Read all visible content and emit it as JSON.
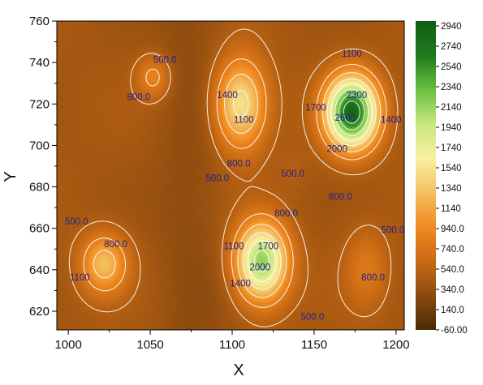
{
  "chart_data": {
    "type": "heatmap",
    "title": "",
    "xlabel": "X",
    "ylabel": "Y",
    "xlim": [
      993,
      1205
    ],
    "ylim": [
      611,
      760
    ],
    "x_ticks": [
      1000,
      1050,
      1100,
      1150,
      1200
    ],
    "y_ticks": [
      620,
      640,
      660,
      680,
      700,
      720,
      740,
      760
    ],
    "grid": false,
    "colorbar": {
      "min": -60,
      "max": 2940,
      "ticks": [
        "2940",
        "2740",
        "2540",
        "2340",
        "2140",
        "1940",
        "1740",
        "1540",
        "1340",
        "1140",
        "940.0",
        "740.0",
        "540.0",
        "340.0",
        "140.0",
        "-60.00"
      ],
      "colors": [
        "#4a2a05",
        "#8a4a0f",
        "#c96a14",
        "#f08a20",
        "#f4c060",
        "#f8f0a0",
        "#c8e880",
        "#6abf40",
        "#1f7a1f",
        "#0f5f0f"
      ]
    },
    "contour_levels": [
      500,
      800,
      1100,
      1400,
      1700,
      2000,
      2300,
      2600
    ],
    "peaks": [
      {
        "x": 1173,
        "y": 716,
        "value": 2800,
        "sx": 11,
        "sy": 12
      },
      {
        "x": 1118,
        "y": 644,
        "value": 2150,
        "sx": 11,
        "sy": 13
      },
      {
        "x": 1105,
        "y": 720,
        "value": 1550,
        "sx": 11,
        "sy": 15
      },
      {
        "x": 1022,
        "y": 643,
        "value": 1250,
        "sx": 10,
        "sy": 10
      },
      {
        "x": 1052,
        "y": 733,
        "value": 900,
        "sx": 7,
        "sy": 7
      },
      {
        "x": 1182,
        "y": 641,
        "value": 750,
        "sx": 9,
        "sy": 13
      },
      {
        "x": 1138,
        "y": 688,
        "value": 500,
        "sx": 6,
        "sy": 7
      }
    ],
    "background_level": 420,
    "contour_labels": [
      {
        "text": "500.0",
        "x": 1059,
        "y": 741
      },
      {
        "text": "800.0",
        "x": 1043,
        "y": 723
      },
      {
        "text": "1400",
        "x": 1097,
        "y": 724
      },
      {
        "text": "1100",
        "x": 1107,
        "y": 712
      },
      {
        "text": "800.0",
        "x": 1104,
        "y": 691
      },
      {
        "text": "500.0",
        "x": 1091,
        "y": 684
      },
      {
        "text": "500.0",
        "x": 1137,
        "y": 686
      },
      {
        "text": "800.0",
        "x": 1133,
        "y": 667
      },
      {
        "text": "1100",
        "x": 1173,
        "y": 744
      },
      {
        "text": "2300",
        "x": 1176,
        "y": 724
      },
      {
        "text": "1700",
        "x": 1151,
        "y": 718
      },
      {
        "text": "2600",
        "x": 1169,
        "y": 713
      },
      {
        "text": "1400",
        "x": 1197,
        "y": 712
      },
      {
        "text": "2000",
        "x": 1164,
        "y": 698
      },
      {
        "text": "800.0",
        "x": 1166,
        "y": 675
      },
      {
        "text": "500.0",
        "x": 1198,
        "y": 659
      },
      {
        "text": "500.0",
        "x": 1005,
        "y": 663
      },
      {
        "text": "800.0",
        "x": 1029,
        "y": 652
      },
      {
        "text": "1100",
        "x": 1007,
        "y": 636
      },
      {
        "text": "1100",
        "x": 1101,
        "y": 651
      },
      {
        "text": "1700",
        "x": 1122,
        "y": 651
      },
      {
        "text": "2000",
        "x": 1117,
        "y": 641
      },
      {
        "text": "1400",
        "x": 1105,
        "y": 633
      },
      {
        "text": "800.0",
        "x": 1186,
        "y": 636
      },
      {
        "text": "500.0",
        "x": 1149,
        "y": 617
      }
    ]
  }
}
